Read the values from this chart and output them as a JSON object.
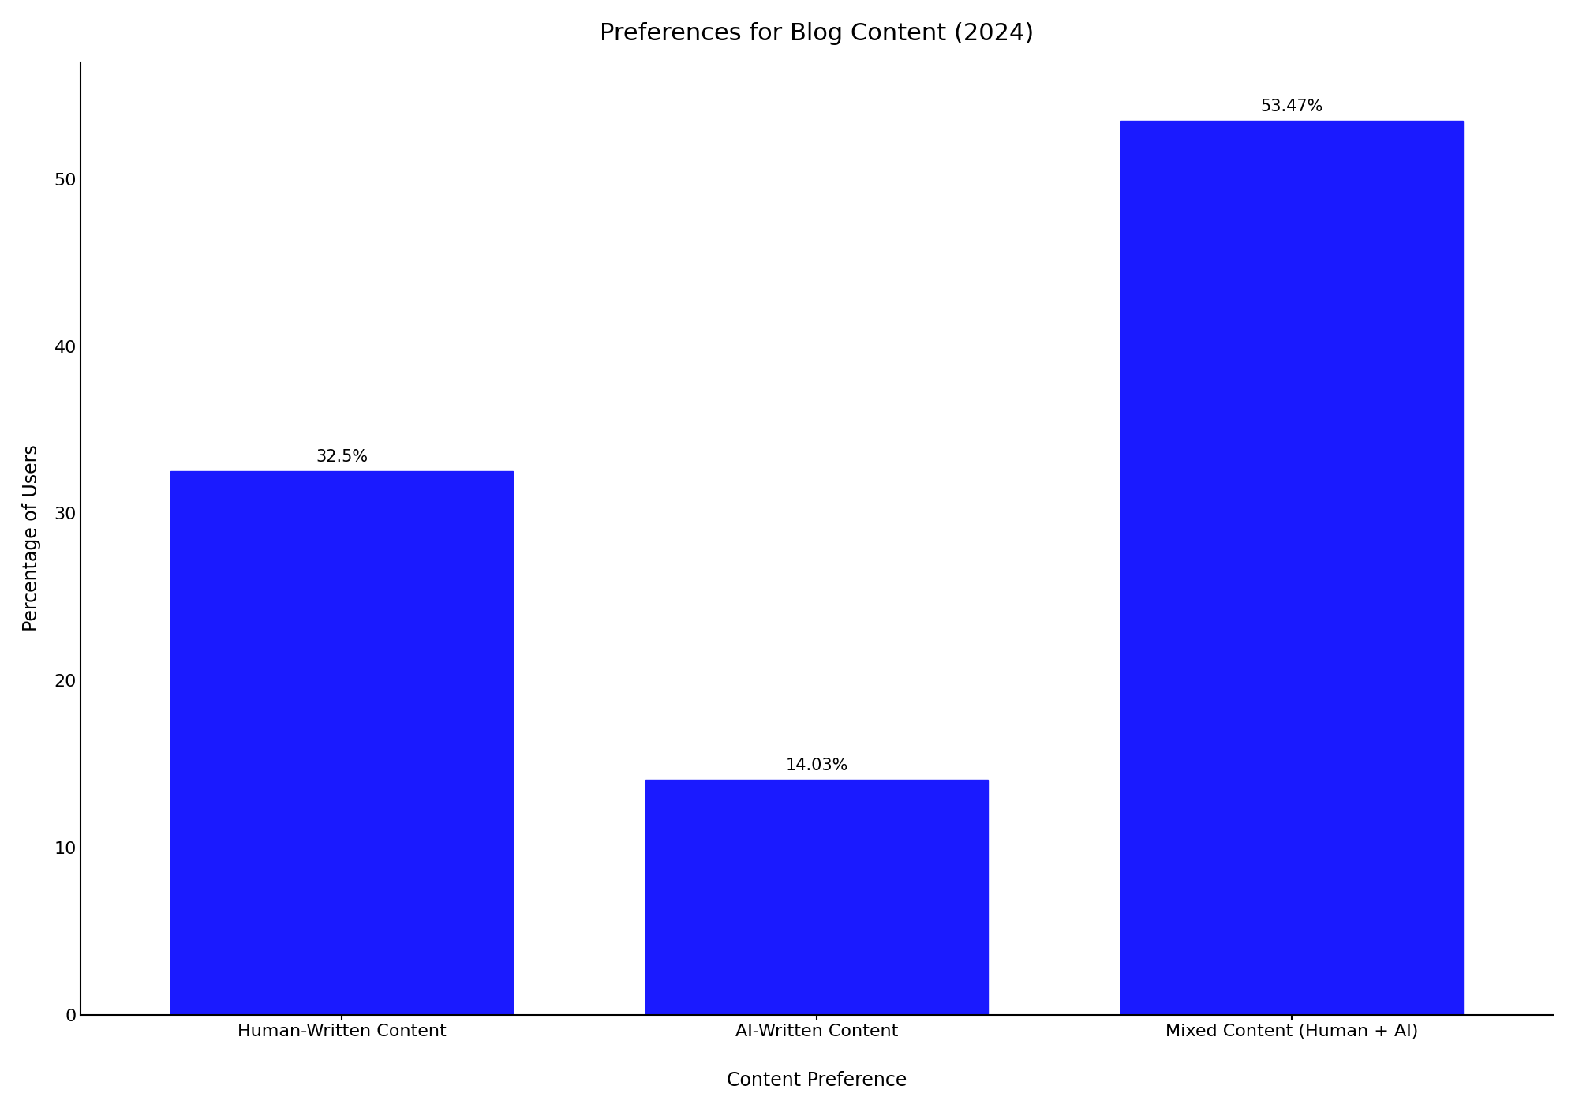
{
  "title": "Preferences for Blog Content (2024)",
  "xlabel": "Content Preference",
  "ylabel": "Percentage of Users",
  "x_labels": [
    "Human-Written Content",
    "AI-Written Content\n",
    "Mixed Content (Human + AI)"
  ],
  "values": [
    32.5,
    14.03,
    53.47
  ],
  "labels": [
    "32.5%",
    "14.03%",
    "53.47%"
  ],
  "bar_color": "#1a1aff",
  "ylim": [
    0,
    57
  ],
  "yticks": [
    0,
    10,
    20,
    30,
    40,
    50
  ],
  "title_fontsize": 22,
  "label_fontsize": 17,
  "tick_fontsize": 16,
  "annotation_fontsize": 15,
  "bar_width": 0.72
}
